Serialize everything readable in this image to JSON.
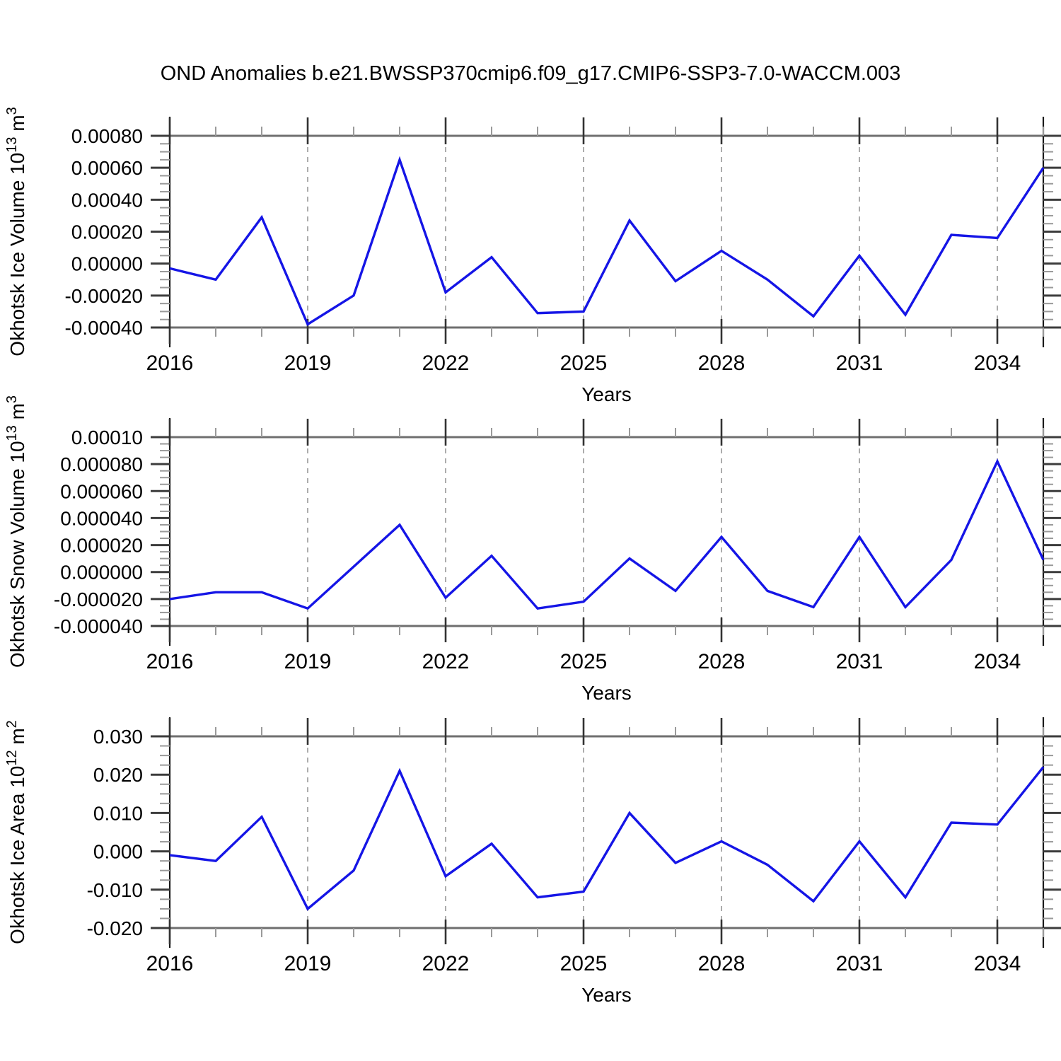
{
  "title": "OND Anomalies b.e21.BWSSP370cmip6.f09_g17.CMIP6-SSP3-7.0-WACCM.003",
  "line_color": "#1515e6",
  "x_axis": {
    "label": "Years",
    "range": [
      2016,
      2035
    ],
    "major_tick_values": [
      2016,
      2019,
      2022,
      2025,
      2028,
      2031,
      2034
    ],
    "major_tick_labels": [
      "2016",
      "2019",
      "2022",
      "2025",
      "2028",
      "2031",
      "2034"
    ],
    "minor_step": 1
  },
  "years": [
    2016,
    2017,
    2018,
    2019,
    2020,
    2021,
    2022,
    2023,
    2024,
    2025,
    2026,
    2027,
    2028,
    2029,
    2030,
    2031,
    2032,
    2033,
    2034,
    2035
  ],
  "chart_data": [
    {
      "type": "line",
      "name": "okhotsk-ice-volume",
      "ylabel": "Okhotsk Ice Volume",
      "ylabel_power": "13",
      "ylabel_unit": "m",
      "ylabel_unit_power": "3",
      "ylim": [
        -0.0004,
        0.0008
      ],
      "y_tick_values": [
        0.0008,
        0.0006,
        0.0004,
        0.0002,
        0.0,
        -0.0002,
        -0.0004
      ],
      "y_tick_labels": [
        "0.00080",
        "0.00060",
        "0.00040",
        "0.00020",
        "0.00000",
        "-0.00020",
        "-0.00040"
      ],
      "y_minor_step": 5e-05,
      "grid": "dashed-vertical",
      "legend": "none",
      "values": [
        -3e-05,
        -0.0001,
        0.00029,
        -0.00038,
        -0.0002,
        0.00065,
        -0.00018,
        4e-05,
        -0.00031,
        -0.0003,
        0.00027,
        -0.00011,
        8e-05,
        -0.0001,
        -0.00033,
        5e-05,
        -0.00032,
        0.00018,
        0.00016,
        0.0006
      ]
    },
    {
      "type": "line",
      "name": "okhotsk-snow-volume",
      "ylabel": "Okhotsk Snow Volume",
      "ylabel_power": "13",
      "ylabel_unit": "m",
      "ylabel_unit_power": "3",
      "ylim": [
        -4e-05,
        0.0001
      ],
      "y_tick_values": [
        0.0001,
        8e-05,
        6e-05,
        4e-05,
        2e-05,
        0.0,
        -2e-05,
        -4e-05
      ],
      "y_tick_labels": [
        "0.00010",
        "0.000080",
        "0.000060",
        "0.000040",
        "0.000020",
        "0.000000",
        "-0.000020",
        "-0.000040"
      ],
      "y_minor_step": 5e-06,
      "grid": "dashed-vertical",
      "legend": "none",
      "values": [
        -2e-05,
        -1.5e-05,
        -1.5e-05,
        -2.7e-05,
        4e-06,
        3.5e-05,
        -1.9e-05,
        1.2e-05,
        -2.7e-05,
        -2.2e-05,
        1e-05,
        -1.4e-05,
        2.6e-05,
        -1.4e-05,
        -2.6e-05,
        2.6e-05,
        -2.6e-05,
        9e-06,
        8.2e-05,
        9e-06
      ]
    },
    {
      "type": "line",
      "name": "okhotsk-ice-area",
      "ylabel": "Okhotsk Ice Area",
      "ylabel_power": "12",
      "ylabel_unit": "m",
      "ylabel_unit_power": "2",
      "ylim": [
        -0.02,
        0.03
      ],
      "y_tick_values": [
        0.03,
        0.02,
        0.01,
        0.0,
        -0.01,
        -0.02
      ],
      "y_tick_labels": [
        "0.030",
        "0.020",
        "0.010",
        "0.000",
        "-0.010",
        "-0.020"
      ],
      "y_minor_step": 0.0025,
      "grid": "dashed-vertical",
      "legend": "none",
      "values": [
        -0.001,
        -0.0025,
        0.009,
        -0.015,
        -0.005,
        0.021,
        -0.0065,
        0.002,
        -0.012,
        -0.0105,
        0.01,
        -0.003,
        0.0026,
        -0.0035,
        -0.013,
        0.0026,
        -0.012,
        0.0075,
        0.007,
        0.022
      ]
    }
  ]
}
